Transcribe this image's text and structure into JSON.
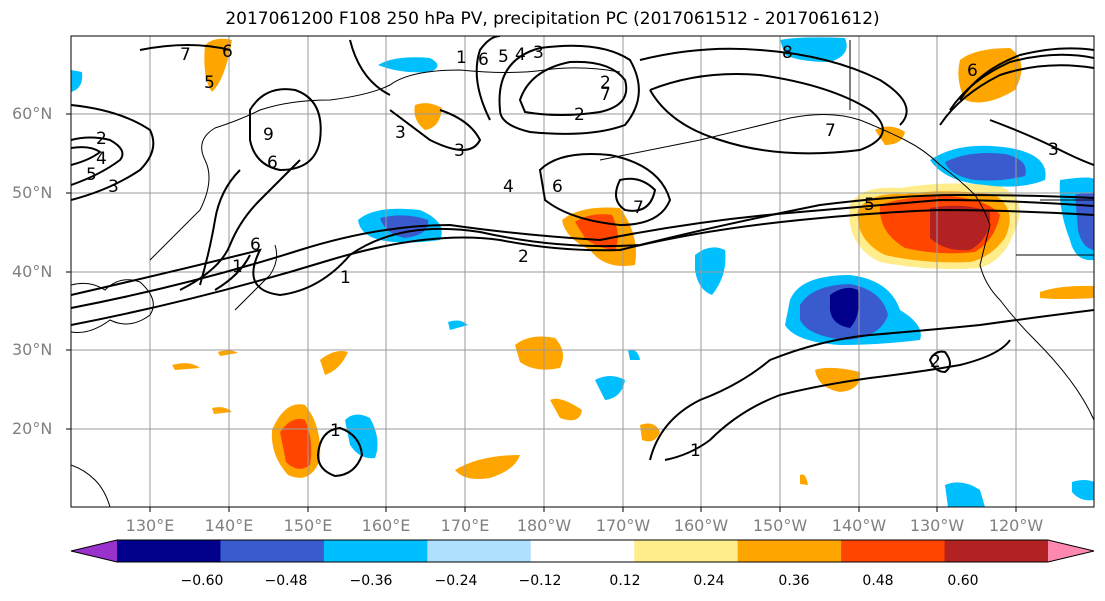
{
  "title": "2017061200 F108 250 hPa PV, precipitation PC (2017061512 - 2017061612)",
  "lat_labels": [
    "60°N",
    "50°N",
    "40°N",
    "30°N",
    "20°N"
  ],
  "lon_labels": [
    "130°E",
    "140°E",
    "150°E",
    "160°E",
    "170°E",
    "180°W",
    "170°W",
    "160°W",
    "150°W",
    "140°W",
    "130°W",
    "120°W"
  ],
  "colorbar": {
    "ticks": [
      "−0.60",
      "−0.48",
      "−0.36",
      "−0.24",
      "−0.12",
      "0.12",
      "0.24",
      "0.36",
      "0.48",
      "0.60"
    ],
    "colors": [
      "#9932cc",
      "#00008b",
      "#3a5bcd",
      "#00bfff",
      "#b0e0ff",
      "#ffffff",
      "#ffec8b",
      "#ffa500",
      "#ff4500",
      "#b22222",
      "#ff88b0"
    ]
  },
  "contour_labels": [
    "7",
    "6",
    "5",
    "1",
    "6",
    "5",
    "4",
    "3",
    "2",
    "7",
    "2",
    "8",
    "6",
    "2",
    "4",
    "5",
    "3",
    "9",
    "6",
    "3",
    "3",
    "6",
    "4",
    "6",
    "7",
    "2",
    "7",
    "5",
    "3",
    "1",
    "1",
    "2",
    "1",
    "1"
  ]
}
